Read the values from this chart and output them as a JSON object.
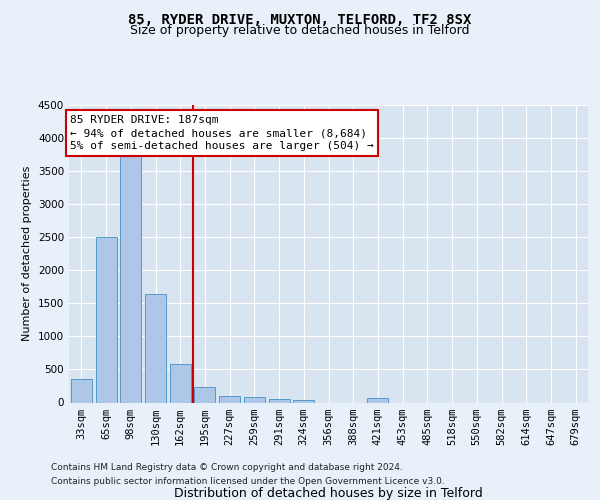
{
  "title_line1": "85, RYDER DRIVE, MUXTON, TELFORD, TF2 8SX",
  "title_line2": "Size of property relative to detached houses in Telford",
  "xlabel": "Distribution of detached houses by size in Telford",
  "ylabel": "Number of detached properties",
  "categories": [
    "33sqm",
    "65sqm",
    "98sqm",
    "130sqm",
    "162sqm",
    "195sqm",
    "227sqm",
    "259sqm",
    "291sqm",
    "324sqm",
    "356sqm",
    "388sqm",
    "421sqm",
    "453sqm",
    "485sqm",
    "518sqm",
    "550sqm",
    "582sqm",
    "614sqm",
    "647sqm",
    "679sqm"
  ],
  "values": [
    360,
    2500,
    3750,
    1640,
    580,
    230,
    105,
    80,
    55,
    45,
    0,
    0,
    65,
    0,
    0,
    0,
    0,
    0,
    0,
    0,
    0
  ],
  "bar_color": "#aec6e8",
  "bar_edgecolor": "#5599cc",
  "vline_x_index": 5,
  "vline_color": "#cc0000",
  "annotation_text": "85 RYDER DRIVE: 187sqm\n← 94% of detached houses are smaller (8,684)\n5% of semi-detached houses are larger (504) →",
  "annotation_box_color": "#cc0000",
  "ylim": [
    0,
    4500
  ],
  "yticks": [
    0,
    500,
    1000,
    1500,
    2000,
    2500,
    3000,
    3500,
    4000,
    4500
  ],
  "footnote_line1": "Contains HM Land Registry data © Crown copyright and database right 2024.",
  "footnote_line2": "Contains public sector information licensed under the Open Government Licence v3.0.",
  "bg_color": "#e8f0fa",
  "plot_bg_color": "#d8e4f0",
  "grid_color": "#ffffff",
  "title_fontsize": 10,
  "subtitle_fontsize": 9,
  "xlabel_fontsize": 9,
  "ylabel_fontsize": 8,
  "tick_fontsize": 7.5,
  "footnote_fontsize": 6.5,
  "ann_fontsize": 8
}
